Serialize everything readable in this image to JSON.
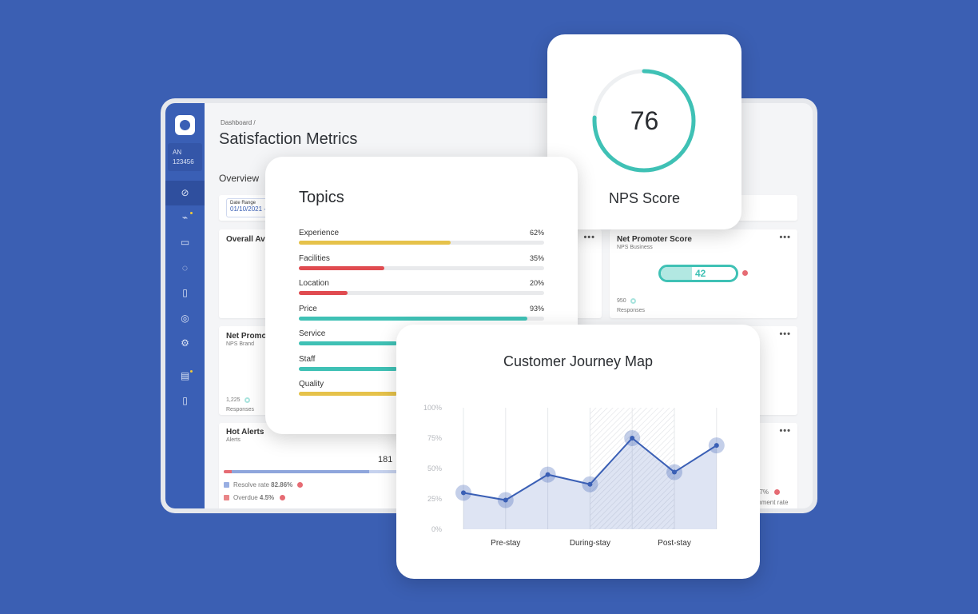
{
  "sidebar": {
    "account_initials": "AN",
    "account_id": "123456",
    "items": [
      {
        "icon": "compass-icon",
        "glyph": "⊘",
        "active": true
      },
      {
        "icon": "chart-icon",
        "glyph": "⌁",
        "badge": true
      },
      {
        "icon": "id-card-icon",
        "glyph": "▭"
      },
      {
        "icon": "chat-icon",
        "glyph": "◌"
      },
      {
        "icon": "clipboard-icon",
        "glyph": "▯"
      },
      {
        "icon": "target-icon",
        "glyph": "◎"
      },
      {
        "icon": "gear-icon",
        "glyph": "⚙"
      },
      {
        "icon": "notes-icon",
        "glyph": "▤",
        "badge": true
      },
      {
        "icon": "tablet-icon",
        "glyph": "▯"
      }
    ]
  },
  "header": {
    "breadcrumb": "Dashboard  /",
    "title": "Satisfaction Metrics",
    "section": "Overview"
  },
  "date_range": {
    "label": "Date Range",
    "value": "01/10/2021 -"
  },
  "cards": {
    "overall": {
      "title": "Overall Ave"
    },
    "nps_brand": {
      "title": "Net Promo",
      "subtitle": "NPS Brand",
      "count": "1,225",
      "count_label": "Responses"
    },
    "hot_alerts": {
      "title": "Hot Alerts",
      "subtitle": "Alerts",
      "total": "181",
      "resolve_label": "Resolve rate",
      "resolve_value": "82.86%",
      "overdue_label": "Overdue",
      "overdue_value": "4.5%",
      "resolve_fraction": 0.83,
      "overdue_fraction": 0.045
    },
    "nps_business": {
      "title": "Net Promoter Score",
      "subtitle": "NPS Business",
      "score": "42",
      "fill_fraction": 0.42,
      "count": "950",
      "count_label": "Responses"
    },
    "comment": {
      "value": "67%",
      "label": "mment rate"
    },
    "more": "•••"
  },
  "nps_card": {
    "score": "76",
    "label": "NPS Score",
    "fraction": 0.76,
    "color": "#3fc1b5"
  },
  "topics": {
    "title": "Topics",
    "items": [
      {
        "label": "Experience",
        "pct": "62%",
        "value": 62,
        "color": "#e6c24a"
      },
      {
        "label": "Facilities",
        "pct": "35%",
        "value": 35,
        "color": "#e04b50"
      },
      {
        "label": "Location",
        "pct": "20%",
        "value": 20,
        "color": "#e04b50"
      },
      {
        "label": "Price",
        "pct": "93%",
        "value": 93,
        "color": "#3fc1b5"
      },
      {
        "label": "Service",
        "pct": "",
        "value": 40,
        "color": "#3fc1b5"
      },
      {
        "label": "Staff",
        "pct": "",
        "value": 40,
        "color": "#3fc1b5"
      },
      {
        "label": "Quality",
        "pct": "",
        "value": 40,
        "color": "#e6c24a"
      }
    ]
  },
  "chart_data": {
    "type": "area",
    "title": "Customer Journey Map",
    "ylim": [
      0,
      100
    ],
    "yticks": [
      "0%",
      "25%",
      "50%",
      "75%",
      "100%"
    ],
    "categories": [
      "Pre-stay",
      "During-stay",
      "Post-stay"
    ],
    "x": [
      0,
      1,
      2,
      3,
      4,
      5,
      6
    ],
    "values": [
      30,
      24,
      45,
      37,
      75,
      47,
      69
    ],
    "highlight_range": [
      3,
      5
    ],
    "grid": "vertical",
    "color": "#3a5fb5"
  }
}
